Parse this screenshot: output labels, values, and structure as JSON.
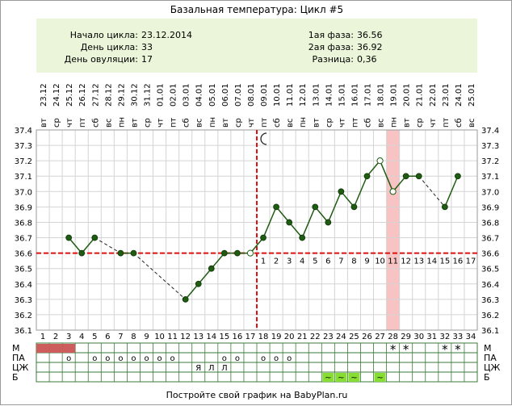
{
  "title": "Базальная температура: Цикл #5",
  "info": {
    "cycle_start_label": "Начало цикла:",
    "cycle_start_value": "23.12.2014",
    "cycle_day_label": "День цикла:",
    "cycle_day_value": "33",
    "ovulation_day_label": "День овуляции:",
    "ovulation_day_value": "17",
    "phase1_label": "1ая фаза:",
    "phase1_value": "36.56",
    "phase2_label": "2ая фаза:",
    "phase2_value": "36.92",
    "difference_label": "Разница:",
    "difference_value": "0,36"
  },
  "footer": "Постройте свой график на BabyPlan.ru",
  "colors": {
    "info_bg": "#eaf5d9",
    "coverline": "#dd1111",
    "ovulation_line": "#dd1111",
    "highlight_band": "#f7c3c3",
    "point": "#1f5c12",
    "menses": "#cd5c5c",
    "luteal_numbers": "#cc4444",
    "green_cell": "#88dd33"
  },
  "chart_data": {
    "type": "line",
    "title": "Базальная температура: Цикл #5",
    "ylim": [
      36.1,
      37.4
    ],
    "y_ticks": [
      "37.4",
      "37.3",
      "37.2",
      "37.1",
      "37.0",
      "36.9",
      "36.8",
      "36.7",
      "36.6",
      "36.5",
      "36.4",
      "36.3",
      "36.2",
      "36.1"
    ],
    "x": [
      1,
      2,
      3,
      4,
      5,
      6,
      7,
      8,
      9,
      10,
      11,
      12,
      13,
      14,
      15,
      16,
      17,
      18,
      19,
      20,
      21,
      22,
      23,
      24,
      25,
      26,
      27,
      28,
      29,
      30,
      31,
      32,
      33,
      34
    ],
    "weekdays": [
      "вт",
      "ср",
      "чт",
      "пт",
      "сб",
      "вс",
      "пн",
      "вт",
      "ср",
      "чт",
      "пт",
      "сб",
      "вс",
      "пн",
      "вт",
      "ср",
      "чт",
      "пт",
      "сб",
      "вс",
      "пн",
      "вт",
      "ср",
      "чт",
      "пт",
      "сб",
      "вс",
      "пн",
      "вт",
      "ср",
      "чт",
      "пт",
      "сб",
      "вс"
    ],
    "dates": [
      "23.12",
      "24.12",
      "25.12",
      "26.12",
      "27.12",
      "28.12",
      "29.12",
      "30.12",
      "31.12",
      "01.01",
      "02.01",
      "03.01",
      "04.01",
      "05.01",
      "06.01",
      "07.01",
      "08.01",
      "09.01",
      "10.01",
      "11.01",
      "12.01",
      "13.01",
      "14.01",
      "15.01",
      "16.01",
      "17.01",
      "18.01",
      "19.01",
      "20.01",
      "21.01",
      "22.01",
      "23.01",
      "24.01",
      "25.01"
    ],
    "temperatures": [
      null,
      null,
      36.7,
      36.6,
      36.7,
      null,
      36.6,
      36.6,
      null,
      null,
      null,
      36.3,
      36.4,
      36.5,
      36.6,
      36.6,
      36.6,
      36.7,
      36.9,
      36.8,
      36.7,
      36.9,
      36.8,
      37.0,
      36.9,
      37.1,
      37.2,
      37.0,
      37.1,
      37.1,
      null,
      36.9,
      37.1,
      null
    ],
    "hollow_points": [
      17,
      27,
      28
    ],
    "coverline": 36.6,
    "ovulation_day": 17,
    "highlight_day": 28,
    "moon_day": 18,
    "luteal_day_labels": [
      "1",
      "2",
      "3",
      "4",
      "5",
      "6",
      "7",
      "8",
      "9",
      "10",
      "11",
      "12",
      "13",
      "14",
      "15",
      "16",
      "17"
    ],
    "rows": {
      "labels": [
        "М",
        "ПА",
        "ЦЖ",
        "Б"
      ],
      "menses_days": [
        1,
        2,
        3
      ],
      "star_days": [
        28,
        29,
        32,
        33
      ],
      "circle_days": [
        3,
        5,
        6,
        7,
        8,
        9,
        10,
        11,
        15,
        16,
        18,
        19,
        20
      ],
      "pa_letters": [
        {
          "day": 13,
          "text": "Я"
        },
        {
          "day": 14,
          "text": "Л"
        },
        {
          "day": 15,
          "text": "Л"
        }
      ],
      "green_days": [
        23,
        24,
        25,
        27
      ],
      "star_symbol": "*",
      "circle_symbol": "o",
      "green_symbol": "~"
    }
  }
}
